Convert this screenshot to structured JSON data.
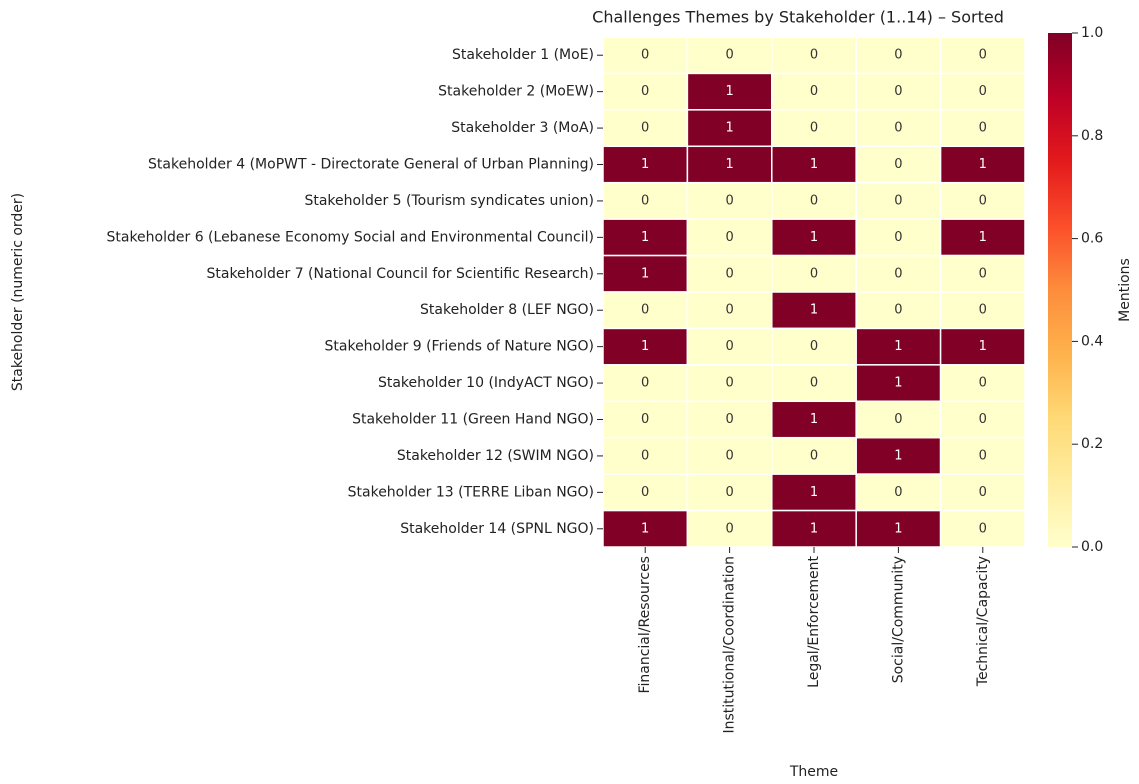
{
  "chart_data": {
    "type": "heatmap",
    "title": "Challenges Themes by Stakeholder (1..14) – Sorted",
    "xlabel": "Theme",
    "ylabel": "Stakeholder (numeric order)",
    "colorbar_label": "Mentions",
    "x_categories": [
      "Financial/Resources",
      "Institutional/Coordination",
      "Legal/Enforcement",
      "Social/Community",
      "Technical/Capacity"
    ],
    "y_categories": [
      "Stakeholder 1 (MoE)",
      "Stakeholder 2 (MoEW)",
      "Stakeholder 3 (MoA)",
      "Stakeholder 4 (MoPWT - Directorate General of Urban Planning)",
      "Stakeholder 5 (Tourism syndicates union)",
      "Stakeholder 6 (Lebanese Economy Social and Environmental Council)",
      "Stakeholder 7 (National Council for Scientific Research)",
      "Stakeholder 8 (LEF NGO)",
      "Stakeholder 9 (Friends of Nature NGO)",
      "Stakeholder 10 (IndyACT NGO)",
      "Stakeholder 11 (Green Hand NGO)",
      "Stakeholder 12 (SWIM NGO)",
      "Stakeholder 13 (TERRE Liban NGO)",
      "Stakeholder 14 (SPNL NGO)"
    ],
    "values": [
      [
        0,
        0,
        0,
        0,
        0
      ],
      [
        0,
        1,
        0,
        0,
        0
      ],
      [
        0,
        1,
        0,
        0,
        0
      ],
      [
        1,
        1,
        1,
        0,
        1
      ],
      [
        0,
        0,
        0,
        0,
        0
      ],
      [
        1,
        0,
        1,
        0,
        1
      ],
      [
        1,
        0,
        0,
        0,
        0
      ],
      [
        0,
        0,
        1,
        0,
        0
      ],
      [
        1,
        0,
        0,
        1,
        1
      ],
      [
        0,
        0,
        0,
        1,
        0
      ],
      [
        0,
        0,
        1,
        0,
        0
      ],
      [
        0,
        0,
        0,
        1,
        0
      ],
      [
        0,
        0,
        1,
        0,
        0
      ],
      [
        1,
        0,
        1,
        1,
        0
      ]
    ],
    "cmap_colors": [
      "#ffffcc",
      "#ffeda0",
      "#fed976",
      "#feb24c",
      "#fd8d3c",
      "#fc4e2a",
      "#e31a1c",
      "#bd0026",
      "#800026"
    ],
    "clim": [
      0,
      1
    ],
    "cticks": [
      {
        "value": 0,
        "label": "0.0"
      },
      {
        "value": 0.2,
        "label": "0.2"
      },
      {
        "value": 0.4,
        "label": "0.4"
      },
      {
        "value": 0.6,
        "label": "0.6"
      },
      {
        "value": 0.8,
        "label": "0.8"
      },
      {
        "value": 1,
        "label": "1.0"
      }
    ]
  }
}
